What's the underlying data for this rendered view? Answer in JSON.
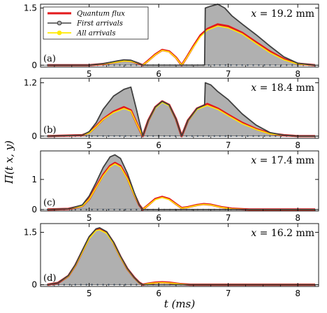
{
  "chart_data": {
    "type": "area",
    "xlabel": "t (ms)",
    "ylabel": "Π(t x, y)",
    "xlim": [
      4.3,
      8.3
    ],
    "xticks": [
      5,
      6,
      7,
      8
    ],
    "legend": {
      "placement": "top-left of panel (a)",
      "entries": [
        "Quantum flux",
        "First arrivals",
        "All arrivals"
      ]
    },
    "colors": {
      "quantum_flux": "#e31a1c",
      "first_arrivals_line": "#404040",
      "first_arrivals_fill": "#b0b0b0",
      "all_arrivals": "#ffea00",
      "axis": "#000000"
    },
    "panels": [
      {
        "tag": "(a)",
        "annotation_var": "x",
        "annotation_rest": "= 19.2 mm",
        "ylim": [
          -0.05,
          1.6
        ],
        "yticks": [
          {
            "value": 0,
            "label": "0"
          },
          {
            "value": 1.5,
            "label": "1.5"
          }
        ],
        "series": [
          {
            "name": "Quantum flux",
            "x": [
              4.4,
              5.0,
              5.2,
              5.4,
              5.5,
              5.6,
              5.7,
              5.77,
              5.85,
              5.95,
              6.05,
              6.15,
              6.25,
              6.33,
              6.4,
              6.5,
              6.6,
              6.7,
              6.85,
              7.0,
              7.2,
              7.4,
              7.6,
              7.8,
              8.0,
              8.25
            ],
            "y": [
              0,
              0.0,
              0.03,
              0.09,
              0.12,
              0.11,
              0.05,
              0,
              0.12,
              0.28,
              0.4,
              0.36,
              0.2,
              0,
              0.2,
              0.5,
              0.78,
              0.95,
              1.07,
              1.02,
              0.85,
              0.6,
              0.36,
              0.16,
              0.04,
              0
            ]
          },
          {
            "name": "First arrivals",
            "x": [
              4.4,
              5.0,
              5.2,
              5.4,
              5.5,
              5.6,
              5.7,
              5.77,
              5.8,
              6.66,
              6.67,
              6.75,
              6.85,
              6.95,
              7.05,
              7.2,
              7.4,
              7.6,
              7.8,
              8.0,
              8.25
            ],
            "y": [
              0,
              0.0,
              0.04,
              0.11,
              0.14,
              0.13,
              0.06,
              0,
              0,
              0,
              1.5,
              1.55,
              1.6,
              1.5,
              1.3,
              1.08,
              0.8,
              0.5,
              0.22,
              0.05,
              0
            ]
          },
          {
            "name": "All arrivals",
            "x": [
              4.4,
              5.0,
              5.2,
              5.4,
              5.5,
              5.6,
              5.7,
              5.77,
              5.85,
              5.95,
              6.05,
              6.15,
              6.25,
              6.33,
              6.4,
              6.5,
              6.6,
              6.7,
              6.85,
              7.0,
              7.2,
              7.4,
              7.6,
              7.8,
              8.0,
              8.25
            ],
            "y": [
              0,
              0.0,
              0.03,
              0.08,
              0.11,
              0.1,
              0.05,
              0,
              0.11,
              0.27,
              0.39,
              0.35,
              0.19,
              0,
              0.19,
              0.48,
              0.75,
              0.92,
              1.03,
              0.98,
              0.82,
              0.57,
              0.33,
              0.14,
              0.03,
              0
            ]
          }
        ]
      },
      {
        "tag": "(b)",
        "annotation_var": "x",
        "annotation_rest": "= 18.4 mm",
        "ylim": [
          -0.05,
          1.3
        ],
        "yticks": [
          {
            "value": 0,
            "label": "0"
          },
          {
            "value": 1.2,
            "label": "1.2"
          }
        ],
        "series": [
          {
            "name": "Quantum flux",
            "x": [
              4.4,
              4.9,
              5.0,
              5.1,
              5.2,
              5.35,
              5.5,
              5.6,
              5.68,
              5.77,
              5.85,
              5.95,
              6.05,
              6.15,
              6.25,
              6.33,
              6.42,
              6.55,
              6.7,
              6.85,
              7.0,
              7.2,
              7.4,
              7.6,
              7.8,
              8.0,
              8.25
            ],
            "y": [
              0,
              0.02,
              0.08,
              0.22,
              0.38,
              0.55,
              0.65,
              0.58,
              0.3,
              0,
              0.35,
              0.65,
              0.78,
              0.7,
              0.38,
              0,
              0.35,
              0.62,
              0.72,
              0.62,
              0.48,
              0.3,
              0.16,
              0.06,
              0.02,
              0,
              0
            ]
          },
          {
            "name": "First arrivals",
            "x": [
              4.4,
              4.9,
              5.0,
              5.1,
              5.2,
              5.35,
              5.5,
              5.6,
              5.68,
              5.77,
              5.85,
              5.95,
              6.05,
              6.15,
              6.25,
              6.33,
              6.42,
              6.55,
              6.66,
              6.67,
              6.75,
              6.85,
              7.0,
              7.2,
              7.4,
              7.6,
              7.8,
              8.0,
              8.25
            ],
            "y": [
              0,
              0.02,
              0.1,
              0.3,
              0.6,
              0.9,
              1.05,
              1.1,
              0.6,
              0,
              0.35,
              0.65,
              0.78,
              0.7,
              0.38,
              0,
              0.35,
              0.62,
              0.7,
              1.2,
              1.15,
              1.0,
              0.82,
              0.5,
              0.25,
              0.08,
              0.02,
              0,
              0
            ]
          },
          {
            "name": "All arrivals",
            "x": [
              4.4,
              4.9,
              5.0,
              5.1,
              5.2,
              5.35,
              5.5,
              5.6,
              5.68,
              5.77,
              5.85,
              5.95,
              6.05,
              6.15,
              6.25,
              6.33,
              6.42,
              6.55,
              6.7,
              6.85,
              7.0,
              7.2,
              7.4,
              7.6,
              7.8,
              8.0,
              8.25
            ],
            "y": [
              0,
              0.02,
              0.07,
              0.21,
              0.37,
              0.53,
              0.62,
              0.56,
              0.29,
              0,
              0.34,
              0.63,
              0.76,
              0.68,
              0.37,
              0,
              0.34,
              0.6,
              0.69,
              0.6,
              0.46,
              0.28,
              0.15,
              0.05,
              0.02,
              0,
              0
            ]
          }
        ]
      },
      {
        "tag": "(c)",
        "annotation_var": "x",
        "annotation_rest": "= 17.4 mm",
        "ylim": [
          -0.05,
          1.95
        ],
        "yticks": [
          {
            "value": 0,
            "label": "0"
          },
          {
            "value": 1,
            "label": "1"
          }
        ],
        "series": [
          {
            "name": "Quantum flux",
            "x": [
              4.4,
              4.7,
              4.9,
              5.0,
              5.1,
              5.2,
              5.3,
              5.37,
              5.45,
              5.55,
              5.65,
              5.72,
              5.77,
              5.85,
              5.95,
              6.05,
              6.15,
              6.25,
              6.33,
              6.42,
              6.55,
              6.65,
              6.75,
              6.9,
              7.05,
              7.3,
              8.25
            ],
            "y": [
              0,
              0.02,
              0.12,
              0.35,
              0.75,
              1.15,
              1.45,
              1.55,
              1.45,
              1.05,
              0.5,
              0.15,
              0,
              0.15,
              0.35,
              0.42,
              0.35,
              0.18,
              0.05,
              0.08,
              0.15,
              0.18,
              0.16,
              0.08,
              0.03,
              0,
              0
            ]
          },
          {
            "name": "First arrivals",
            "x": [
              4.4,
              4.7,
              4.9,
              5.0,
              5.1,
              5.2,
              5.3,
              5.37,
              5.45,
              5.55,
              5.65,
              5.72,
              5.77,
              5.85,
              8.25
            ],
            "y": [
              0,
              0.02,
              0.15,
              0.45,
              0.9,
              1.4,
              1.75,
              1.82,
              1.7,
              1.2,
              0.55,
              0.15,
              0,
              0,
              0
            ]
          },
          {
            "name": "All arrivals",
            "x": [
              4.4,
              4.7,
              4.9,
              5.0,
              5.1,
              5.2,
              5.3,
              5.37,
              5.45,
              5.55,
              5.65,
              5.72,
              5.77,
              5.85,
              5.95,
              6.05,
              6.15,
              6.25,
              6.33,
              6.42,
              6.55,
              6.65,
              6.75,
              6.9,
              7.05,
              7.3,
              8.25
            ],
            "y": [
              0,
              0.02,
              0.11,
              0.34,
              0.73,
              1.12,
              1.42,
              1.52,
              1.42,
              1.02,
              0.48,
              0.14,
              0,
              0.14,
              0.33,
              0.4,
              0.33,
              0.17,
              0.04,
              0.07,
              0.14,
              0.17,
              0.15,
              0.07,
              0.02,
              0,
              0
            ]
          }
        ]
      },
      {
        "tag": "(d)",
        "annotation_var": "x",
        "annotation_rest": "= 16.2 mm",
        "ylim": [
          -0.05,
          1.75
        ],
        "yticks": [
          {
            "value": 0,
            "label": "0"
          },
          {
            "value": 1.5,
            "label": "1.5"
          }
        ],
        "series": [
          {
            "name": "Quantum flux",
            "x": [
              4.4,
              4.55,
              4.7,
              4.8,
              4.9,
              5.0,
              5.1,
              5.15,
              5.25,
              5.35,
              5.45,
              5.55,
              5.65,
              5.72,
              5.77,
              5.85,
              5.95,
              6.05,
              6.15,
              6.3,
              6.45,
              8.25
            ],
            "y": [
              0,
              0.05,
              0.25,
              0.55,
              0.95,
              1.35,
              1.58,
              1.6,
              1.5,
              1.2,
              0.8,
              0.45,
              0.2,
              0.06,
              0,
              0.03,
              0.06,
              0.07,
              0.06,
              0.02,
              0,
              0
            ]
          },
          {
            "name": "First arrivals",
            "x": [
              4.4,
              4.55,
              4.7,
              4.8,
              4.9,
              5.0,
              5.1,
              5.15,
              5.25,
              5.35,
              5.45,
              5.55,
              5.65,
              5.72,
              5.77,
              8.25
            ],
            "y": [
              0,
              0.05,
              0.26,
              0.57,
              0.98,
              1.38,
              1.6,
              1.63,
              1.52,
              1.22,
              0.82,
              0.46,
              0.2,
              0.06,
              0,
              0
            ]
          },
          {
            "name": "All arrivals",
            "x": [
              4.4,
              4.55,
              4.7,
              4.8,
              4.9,
              5.0,
              5.1,
              5.15,
              5.25,
              5.35,
              5.45,
              5.55,
              5.65,
              5.72,
              5.77,
              5.85,
              5.95,
              6.05,
              6.15,
              6.3,
              6.45,
              8.25
            ],
            "y": [
              0,
              0.05,
              0.24,
              0.54,
              0.93,
              1.32,
              1.55,
              1.57,
              1.47,
              1.18,
              0.78,
              0.44,
              0.19,
              0.05,
              0,
              0.03,
              0.05,
              0.06,
              0.05,
              0.02,
              0,
              0
            ]
          }
        ]
      }
    ]
  }
}
